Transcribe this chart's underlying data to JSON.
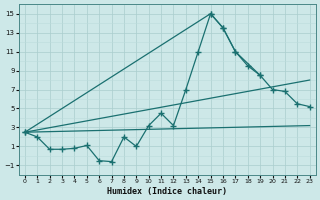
{
  "xlabel": "Humidex (Indice chaleur)",
  "xlim": [
    -0.5,
    23.5
  ],
  "ylim": [
    -2,
    16
  ],
  "yticks": [
    -1,
    1,
    3,
    5,
    7,
    9,
    11,
    13,
    15
  ],
  "xticks": [
    0,
    1,
    2,
    3,
    4,
    5,
    6,
    7,
    8,
    9,
    10,
    11,
    12,
    13,
    14,
    15,
    16,
    17,
    18,
    19,
    20,
    21,
    22,
    23
  ],
  "line1_x": [
    0,
    1,
    2,
    3,
    4,
    5,
    6,
    7,
    8,
    9,
    10,
    11,
    12,
    13,
    14,
    15,
    16,
    17,
    18,
    19
  ],
  "line1_y": [
    2.5,
    2.0,
    0.7,
    0.7,
    0.8,
    1.1,
    -0.5,
    -0.6,
    2.0,
    1.0,
    3.2,
    4.5,
    3.2,
    7.0,
    11.0,
    15.0,
    13.5,
    11.0,
    9.5,
    8.5
  ],
  "line2_x": [
    0,
    15,
    16,
    17,
    19,
    20,
    21,
    22,
    23
  ],
  "line2_y": [
    2.5,
    15.0,
    13.5,
    11.0,
    8.5,
    7.0,
    6.8,
    5.5,
    5.2
  ],
  "line3_x": [
    0,
    23
  ],
  "line3_y": [
    2.5,
    8.0
  ],
  "line4_x": [
    0,
    23
  ],
  "line4_y": [
    2.5,
    3.2
  ],
  "bg_color": "#cde8e8",
  "grid_major_color": "#aacece",
  "grid_minor_color": "#bcdcdc",
  "line_color": "#1a7070",
  "markersize": 2.5,
  "linewidth": 0.9
}
